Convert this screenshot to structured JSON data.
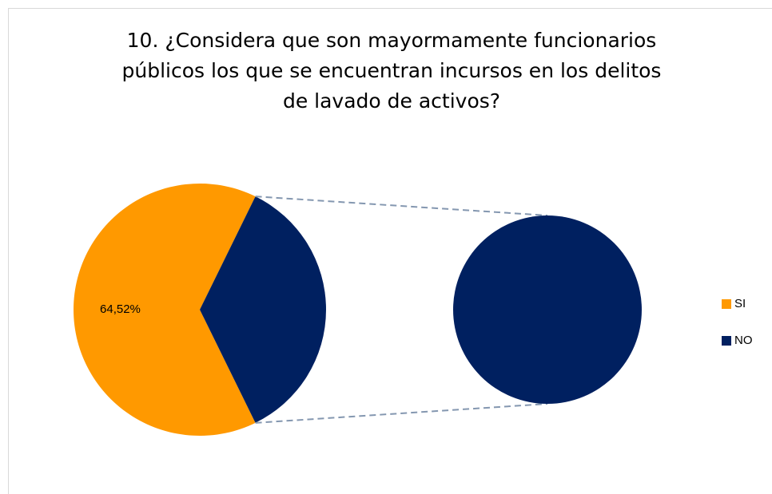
{
  "chart_data": {
    "type": "pie-of-pie",
    "title": [
      "10. ¿Considera que son mayormamente funcionarios",
      "públicos los que se encuentran incursos en los delitos",
      "de lavado de activos?"
    ],
    "categories": [
      "SI",
      "NO"
    ],
    "values": [
      64.52,
      35.48
    ],
    "value_labels": [
      "64,52%",
      null
    ],
    "colors": [
      "#ff9900",
      "#002060"
    ],
    "legend": "right"
  }
}
